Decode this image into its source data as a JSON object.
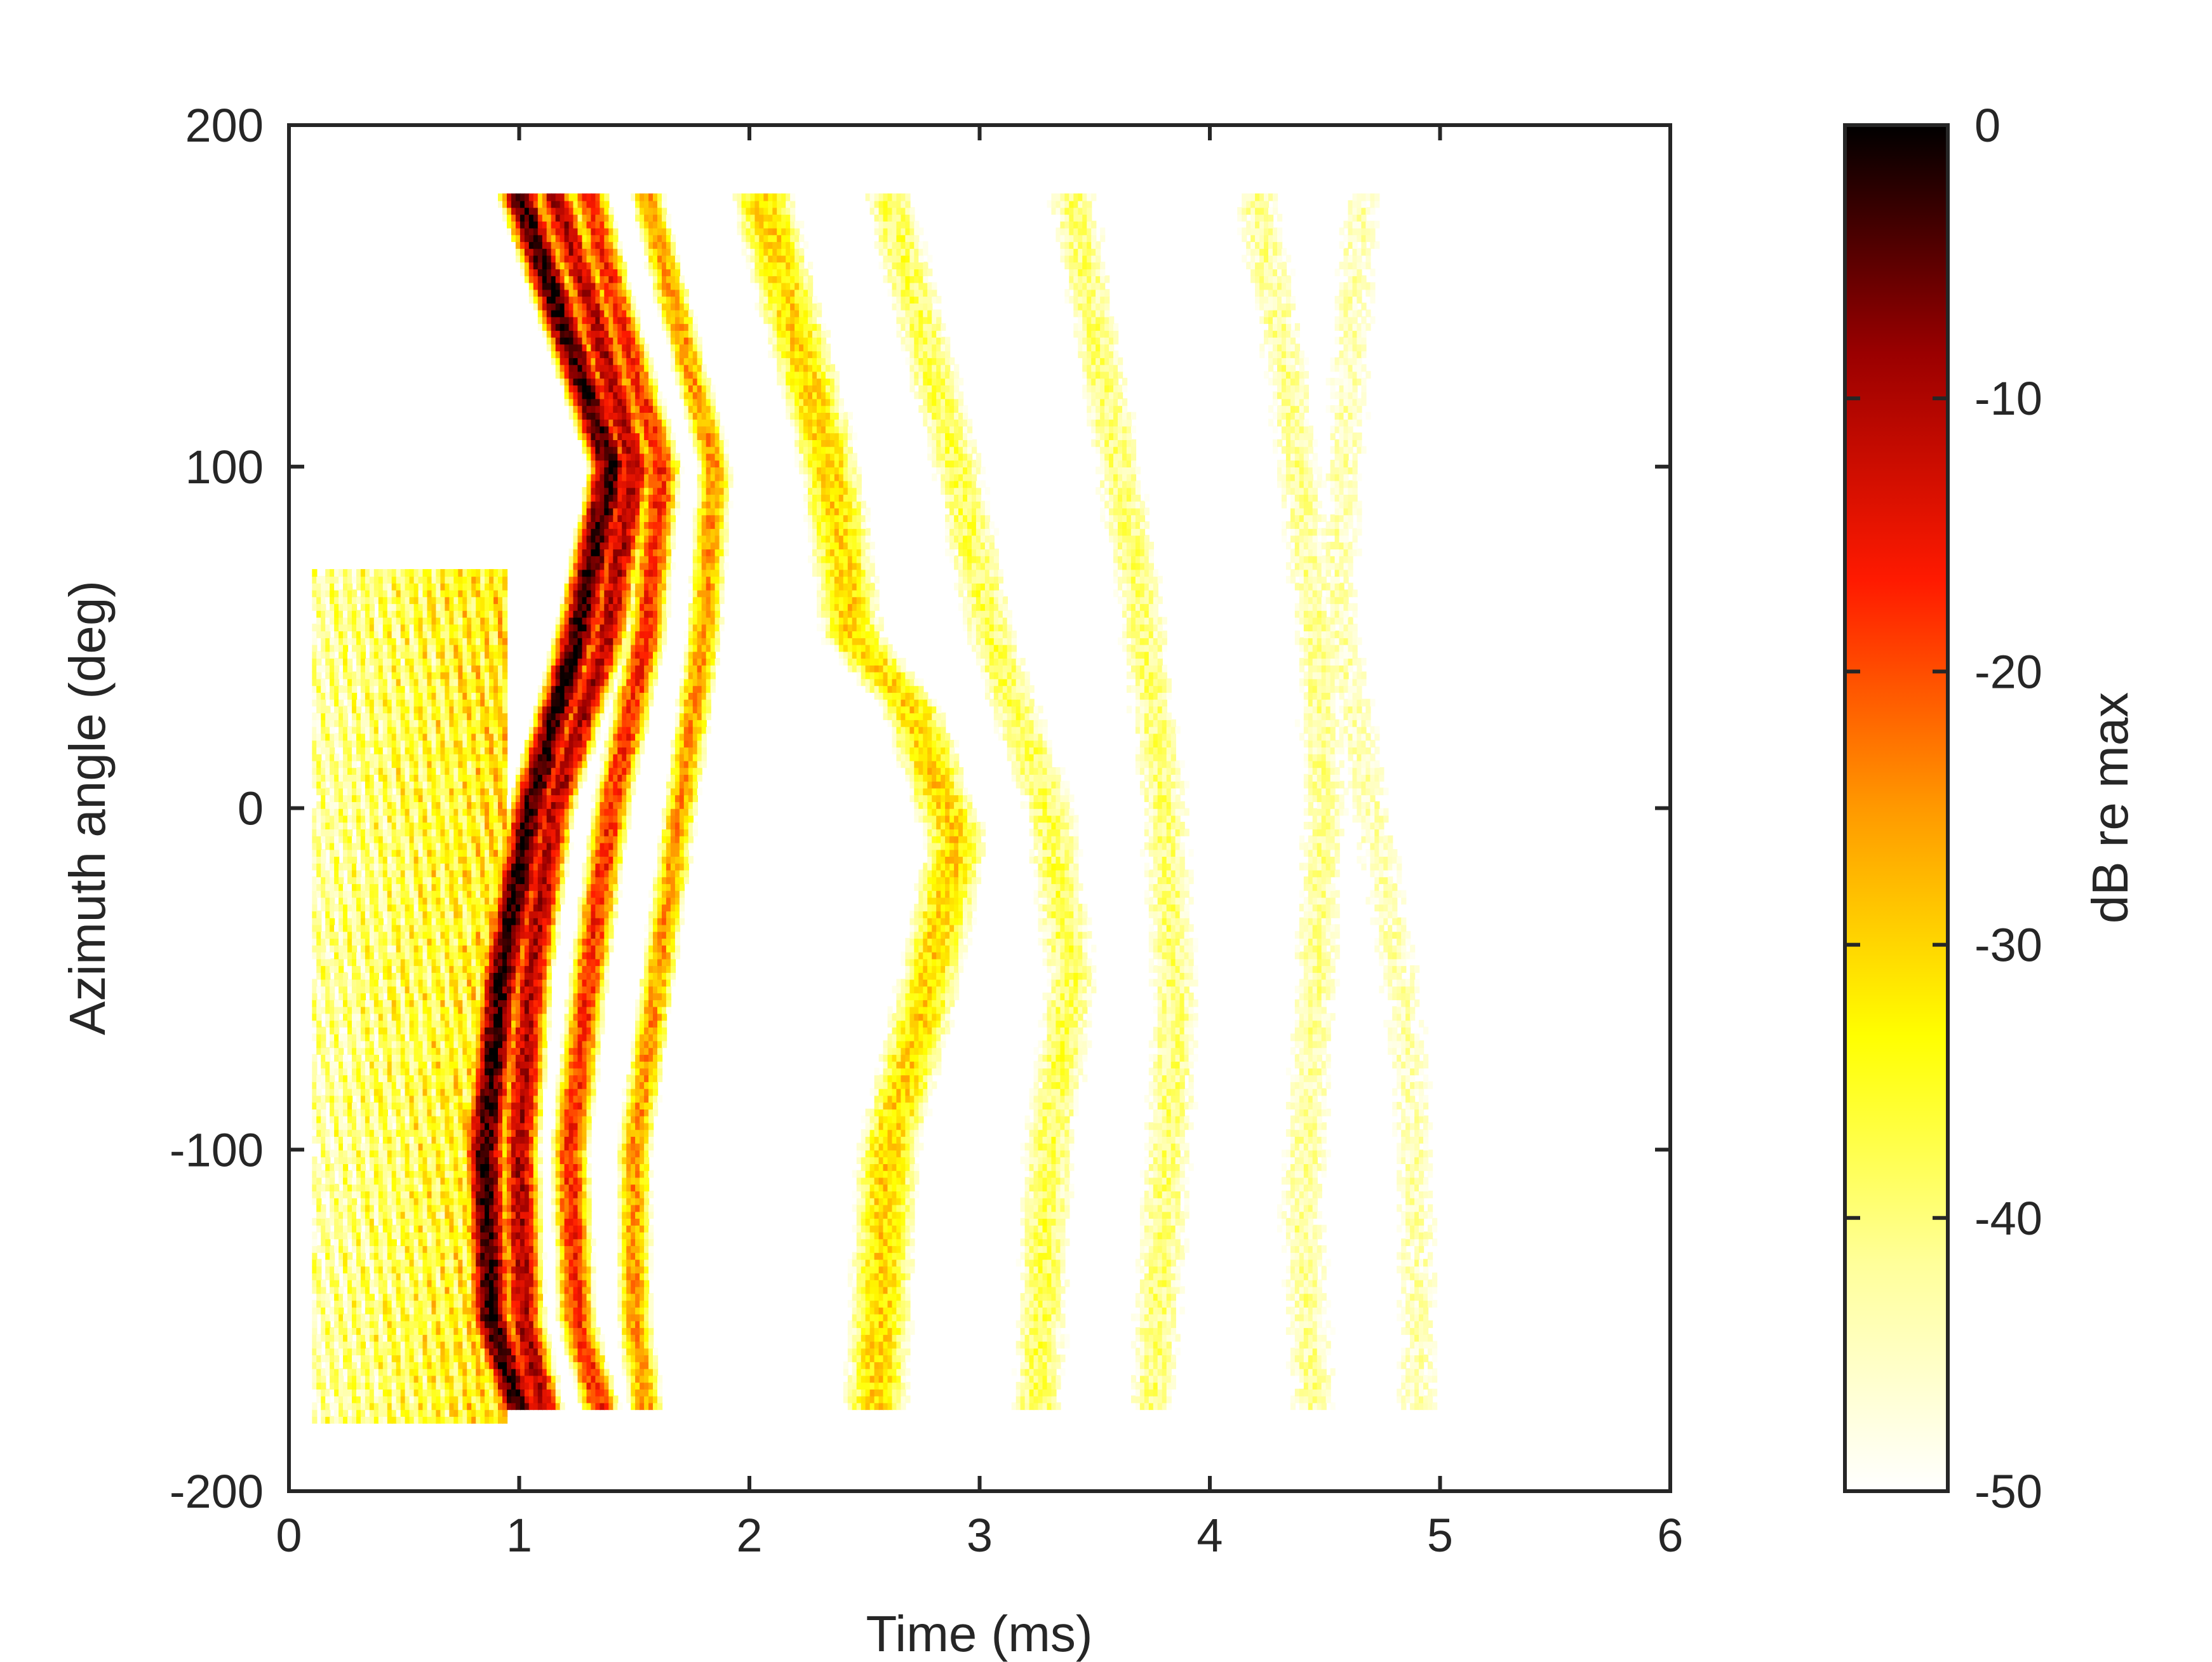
{
  "chart_data": {
    "type": "heatmap",
    "title": "",
    "xlabel": "Time (ms)",
    "ylabel": "Azimuth angle (deg)",
    "xlim": [
      0,
      6
    ],
    "ylim": [
      -200,
      200
    ],
    "xticks": [
      0,
      1,
      2,
      3,
      4,
      5,
      6
    ],
    "yticks": [
      -200,
      -100,
      0,
      100,
      200
    ],
    "data_extent": {
      "x": [
        0.1,
        5.1
      ],
      "y": [
        -180,
        180
      ]
    },
    "colorbar": {
      "label": "dB re max",
      "range": [
        -50,
        0
      ],
      "ticks": [
        0,
        -10,
        -20,
        -30,
        -40,
        -50
      ],
      "colormap": "hot",
      "color_stops": [
        "#ffffff",
        "#ffff9a",
        "#ffff00",
        "#ff9900",
        "#ff1a00",
        "#9a0000",
        "#000000"
      ]
    },
    "ridges": [
      {
        "name": "",
        "points": [
          [
            1.0,
            180
          ],
          [
            1.15,
            150
          ],
          [
            1.4,
            100
          ],
          [
            1.25,
            50
          ],
          [
            1.05,
            0
          ],
          [
            0.92,
            -50
          ],
          [
            0.85,
            -100
          ],
          [
            0.88,
            -150
          ],
          [
            1.0,
            -175
          ]
        ],
        "level": -2
      },
      {
        "name": "",
        "points": [
          [
            1.15,
            180
          ],
          [
            1.3,
            150
          ],
          [
            1.5,
            100
          ],
          [
            1.38,
            50
          ],
          [
            1.15,
            0
          ],
          [
            1.05,
            -50
          ],
          [
            1.0,
            -100
          ],
          [
            1.02,
            -150
          ],
          [
            1.1,
            -175
          ]
        ],
        "level": -10
      },
      {
        "name": "",
        "points": [
          [
            1.3,
            180
          ],
          [
            1.45,
            140
          ],
          [
            1.62,
            100
          ],
          [
            1.55,
            50
          ],
          [
            1.4,
            0
          ],
          [
            1.3,
            -50
          ],
          [
            1.22,
            -100
          ],
          [
            1.25,
            -150
          ],
          [
            1.35,
            -175
          ]
        ],
        "level": -17
      },
      {
        "name": "",
        "points": [
          [
            1.55,
            180
          ],
          [
            1.7,
            140
          ],
          [
            1.85,
            100
          ],
          [
            1.8,
            50
          ],
          [
            1.7,
            0
          ],
          [
            1.6,
            -50
          ],
          [
            1.5,
            -100
          ],
          [
            1.5,
            -150
          ],
          [
            1.55,
            -175
          ]
        ],
        "level": -25
      },
      {
        "name": "",
        "points": [
          [
            2.05,
            180
          ],
          [
            2.2,
            140
          ],
          [
            2.35,
            100
          ],
          [
            2.45,
            50
          ],
          [
            2.7,
            30
          ],
          [
            2.9,
            -10
          ],
          [
            2.75,
            -60
          ],
          [
            2.6,
            -100
          ],
          [
            2.55,
            -175
          ]
        ],
        "level": -30
      },
      {
        "name": "",
        "points": [
          [
            2.6,
            180
          ],
          [
            2.75,
            140
          ],
          [
            2.9,
            100
          ],
          [
            3.05,
            50
          ],
          [
            3.3,
            0
          ],
          [
            3.4,
            -50
          ],
          [
            3.3,
            -100
          ],
          [
            3.25,
            -175
          ]
        ],
        "level": -38
      },
      {
        "name": "",
        "points": [
          [
            3.4,
            180
          ],
          [
            3.55,
            120
          ],
          [
            3.7,
            60
          ],
          [
            3.8,
            0
          ],
          [
            3.85,
            -60
          ],
          [
            3.8,
            -120
          ],
          [
            3.75,
            -175
          ]
        ],
        "level": -40
      },
      {
        "name": "",
        "points": [
          [
            4.2,
            180
          ],
          [
            4.35,
            120
          ],
          [
            4.45,
            60
          ],
          [
            4.5,
            0
          ],
          [
            4.45,
            -60
          ],
          [
            4.4,
            -120
          ],
          [
            4.45,
            -175
          ]
        ],
        "level": -42
      },
      {
        "name": "",
        "points": [
          [
            4.65,
            180
          ],
          [
            4.6,
            120
          ],
          [
            4.55,
            60
          ],
          [
            4.7,
            0
          ],
          [
            4.85,
            -60
          ],
          [
            4.9,
            -120
          ],
          [
            4.9,
            -175
          ]
        ],
        "level": -44
      }
    ]
  }
}
